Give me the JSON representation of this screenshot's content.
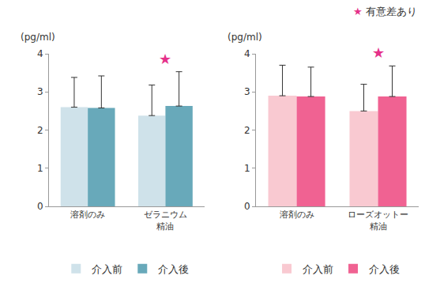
{
  "chart_data": [
    {
      "type": "bar",
      "ylabel": "(pg/ml)",
      "categories": [
        "溶剤のみ",
        "ゼラニウム\n精油"
      ],
      "series": [
        {
          "name": "介入前",
          "color": "#cfe2ea",
          "values": [
            2.6,
            2.38
          ],
          "errors": [
            0.78,
            0.8
          ]
        },
        {
          "name": "介入後",
          "color": "#68a9ba",
          "values": [
            2.58,
            2.63
          ],
          "errors": [
            0.84,
            0.9
          ]
        }
      ],
      "ylim": [
        0,
        4
      ],
      "yticks": [
        0,
        1,
        2,
        3,
        4
      ],
      "grid": false,
      "legend": "bottom",
      "annotations": [
        {
          "category": "ゼラニウム\n精油",
          "text": "★"
        }
      ]
    },
    {
      "type": "bar",
      "ylabel": "(pg/ml)",
      "categories": [
        "溶剤のみ",
        "ローズオットー\n精油"
      ],
      "series": [
        {
          "name": "介入前",
          "color": "#f9c9d1",
          "values": [
            2.9,
            2.5
          ],
          "errors": [
            0.8,
            0.7
          ]
        },
        {
          "name": "介入後",
          "color": "#f06292",
          "values": [
            2.88,
            2.88
          ],
          "errors": [
            0.77,
            0.8
          ]
        }
      ],
      "ylim": [
        0,
        4
      ],
      "yticks": [
        0,
        1,
        2,
        3,
        4
      ],
      "grid": false,
      "legend": "bottom",
      "annotations": [
        {
          "category": "ローズオットー\n精油",
          "text": "★"
        }
      ]
    }
  ],
  "note": {
    "symbol": "★",
    "text": "有意差あり"
  }
}
